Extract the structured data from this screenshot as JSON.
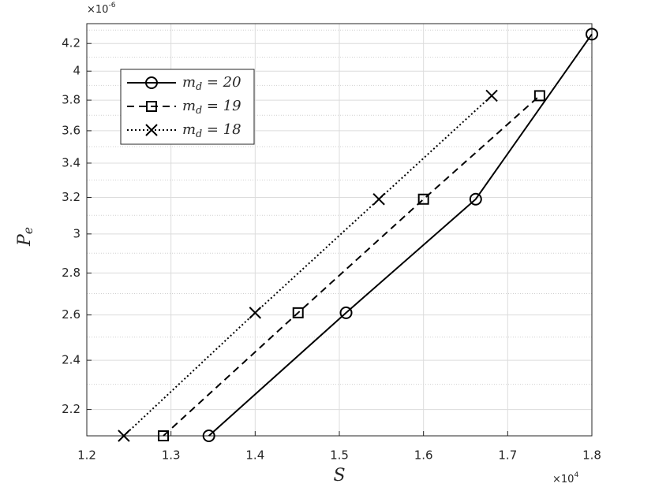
{
  "chart_data": {
    "type": "line",
    "x_label": "S",
    "y_label": "Pe",
    "x_exponent": "×104",
    "y_exponent": "×10-6",
    "xlim": [
      1.2,
      1.8
    ],
    "xticks": [
      1.2,
      1.3,
      1.4,
      1.5,
      1.6,
      1.7,
      1.8
    ],
    "ylim": [
      2.1,
      4.35
    ],
    "yscale": "log",
    "yticks": [
      2.2,
      2.4,
      2.6,
      2.8,
      3,
      3.2,
      3.4,
      3.6,
      3.8,
      4,
      4.2
    ],
    "yminorticks": [
      2.1,
      2.3,
      2.5,
      2.7,
      2.9,
      3.1,
      3.3,
      3.5,
      3.7,
      3.9,
      4.1,
      4.3
    ],
    "grid": true,
    "minor_grid": true,
    "legend": "upper left",
    "series": [
      {
        "name": "md = 20",
        "color": "#000000",
        "linestyle": "solid",
        "marker": "circle",
        "x": [
          1.345,
          1.508,
          1.662,
          1.8
        ],
        "values": [
          2.1,
          2.61,
          3.19,
          4.27
        ]
      },
      {
        "name": "md = 19",
        "color": "#000000",
        "linestyle": "dashed",
        "marker": "square",
        "x": [
          1.291,
          1.451,
          1.6,
          1.738
        ],
        "values": [
          2.1,
          2.61,
          3.19,
          3.83
        ]
      },
      {
        "name": "md = 18",
        "color": "#000000",
        "linestyle": "dotted",
        "marker": "x",
        "x": [
          1.244,
          1.4,
          1.547,
          1.681
        ],
        "values": [
          2.1,
          2.61,
          3.19,
          3.83
        ]
      }
    ]
  }
}
